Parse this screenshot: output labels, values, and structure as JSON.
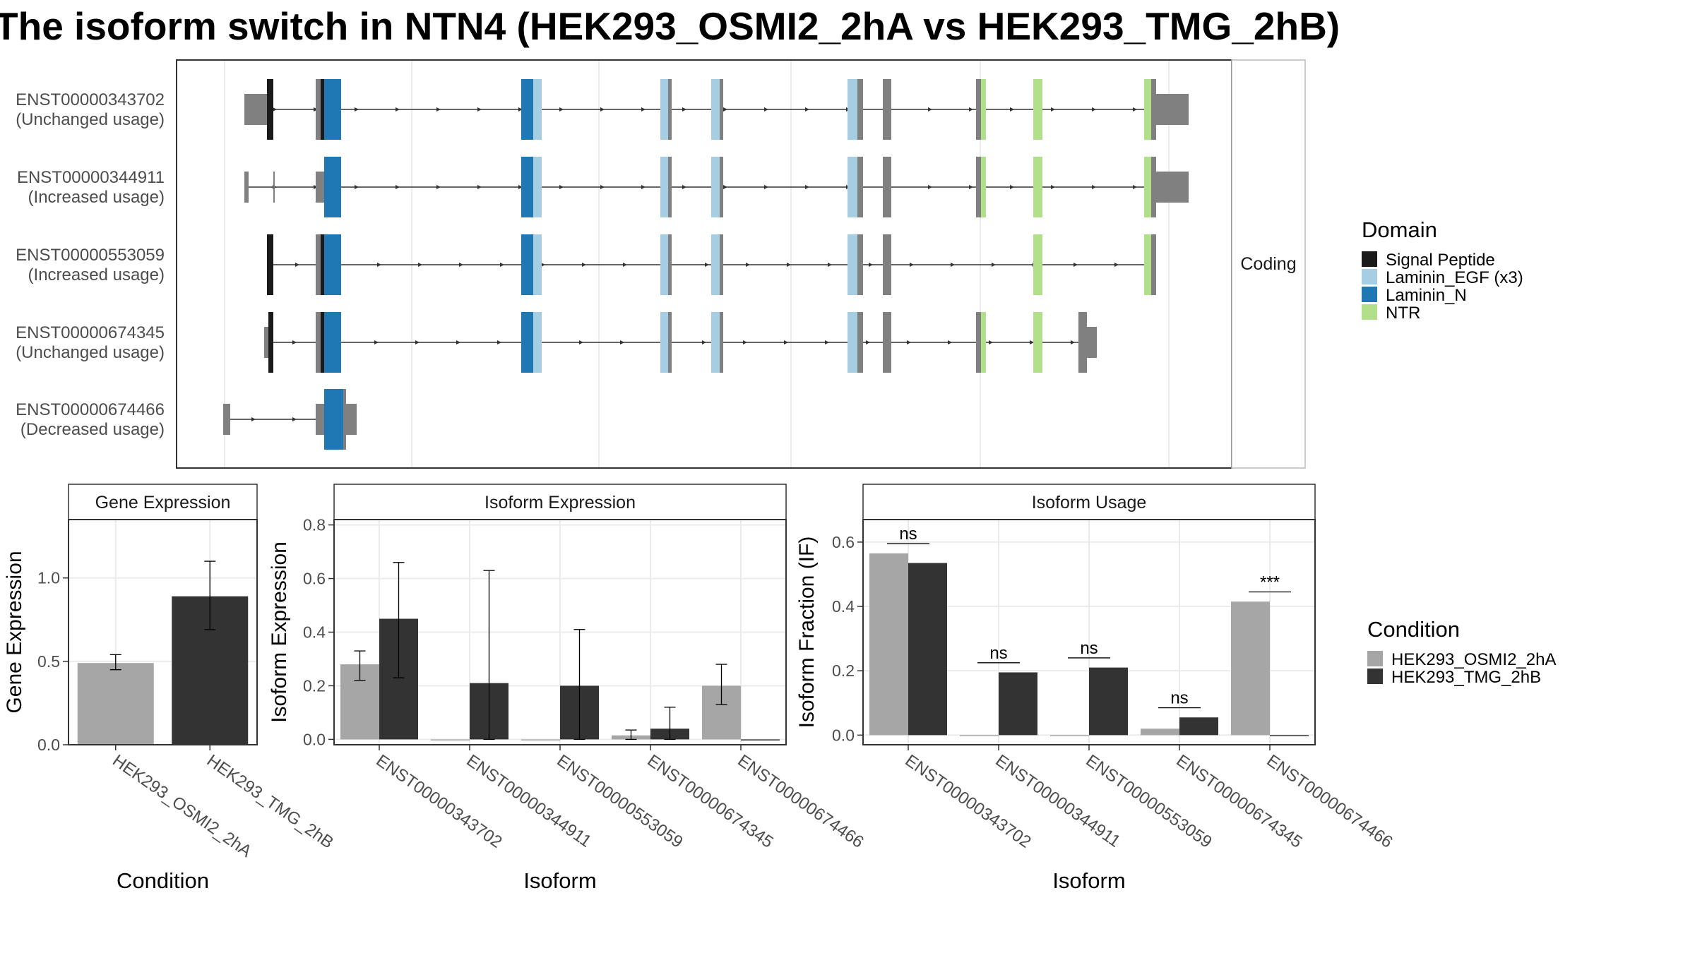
{
  "title": "The isoform switch in NTN4 (HEK293_OSMI2_2hA vs HEK293_TMG_2hB)",
  "colors": {
    "Signal Peptide": "#1a1a1a",
    "Laminin_EGF (x3)": "#a6cee3",
    "Laminin_N": "#1f78b4",
    "NTR": "#b2df8a",
    "utr": "#808080",
    "cond1": "#a6a6a6",
    "cond2": "#333333",
    "grid": "#ebebeb"
  },
  "chart_data": [
    {
      "type": "gene-structure",
      "facet_label": "Coding",
      "legend_title": "Domain",
      "legend": [
        "Signal Peptide",
        "Laminin_EGF (x3)",
        "Laminin_N",
        "NTR"
      ],
      "transcripts": [
        {
          "id": "ENST00000343702",
          "status": "(Unchanged usage)"
        },
        {
          "id": "ENST00000344911",
          "status": "(Increased usage)"
        },
        {
          "id": "ENST00000553059",
          "status": "(Increased usage)"
        },
        {
          "id": "ENST00000674345",
          "status": "(Unchanged usage)"
        },
        {
          "id": "ENST00000674466",
          "status": "(Decreased usage)"
        }
      ]
    },
    {
      "type": "bar",
      "title": "Gene Expression",
      "ylabel": "Gene Expression",
      "xlabel": "Condition",
      "ylim": [
        0,
        1.35
      ],
      "yticks": [
        "0.0",
        "0.5",
        "1.0"
      ],
      "categories": [
        "HEK293_OSMI2_2hA",
        "HEK293_TMG_2hB"
      ],
      "values": [
        0.49,
        0.89
      ],
      "error_low": [
        0.45,
        0.69
      ],
      "error_high": [
        0.54,
        1.1
      ]
    },
    {
      "type": "bar",
      "title": "Isoform Expression",
      "ylabel": "Isoform Expression",
      "xlabel": "Isoform",
      "ylim": [
        -0.02,
        0.82
      ],
      "yticks": [
        "0.0",
        "0.2",
        "0.4",
        "0.6",
        "0.8"
      ],
      "categories": [
        "ENST00000343702",
        "ENST00000344911",
        "ENST00000553059",
        "ENST00000674345",
        "ENST00000674466"
      ],
      "series": [
        {
          "name": "HEK293_OSMI2_2hA",
          "values": [
            0.28,
            0.0,
            0.0,
            0.015,
            0.2
          ],
          "error_low": [
            0.22,
            0.0,
            0.0,
            0.0,
            0.13
          ],
          "error_high": [
            0.33,
            0.0,
            0.0,
            0.035,
            0.28
          ]
        },
        {
          "name": "HEK293_TMG_2hB",
          "values": [
            0.45,
            0.21,
            0.2,
            0.04,
            0.0
          ],
          "error_low": [
            0.23,
            0.0,
            0.0,
            0.0,
            0.0
          ],
          "error_high": [
            0.66,
            0.63,
            0.41,
            0.12,
            0.0
          ]
        }
      ]
    },
    {
      "type": "bar",
      "title": "Isoform Usage",
      "ylabel": "Isoform Fraction (IF)",
      "xlabel": "Isoform",
      "ylim": [
        -0.03,
        0.67
      ],
      "yticks": [
        "0.0",
        "0.2",
        "0.4",
        "0.6"
      ],
      "categories": [
        "ENST00000343702",
        "ENST00000344911",
        "ENST00000553059",
        "ENST00000674345",
        "ENST00000674466"
      ],
      "series": [
        {
          "name": "HEK293_OSMI2_2hA",
          "values": [
            0.565,
            0.0,
            0.0,
            0.02,
            0.415
          ]
        },
        {
          "name": "HEK293_TMG_2hB",
          "values": [
            0.535,
            0.195,
            0.21,
            0.055,
            0.0
          ]
        }
      ],
      "significance": [
        "ns",
        "ns",
        "ns",
        "ns",
        "***"
      ],
      "significance_y": [
        0.595,
        0.225,
        0.24,
        0.085,
        0.445
      ]
    }
  ],
  "condition_legend": {
    "title": "Condition",
    "items": [
      "HEK293_OSMI2_2hA",
      "HEK293_TMG_2hB"
    ]
  }
}
